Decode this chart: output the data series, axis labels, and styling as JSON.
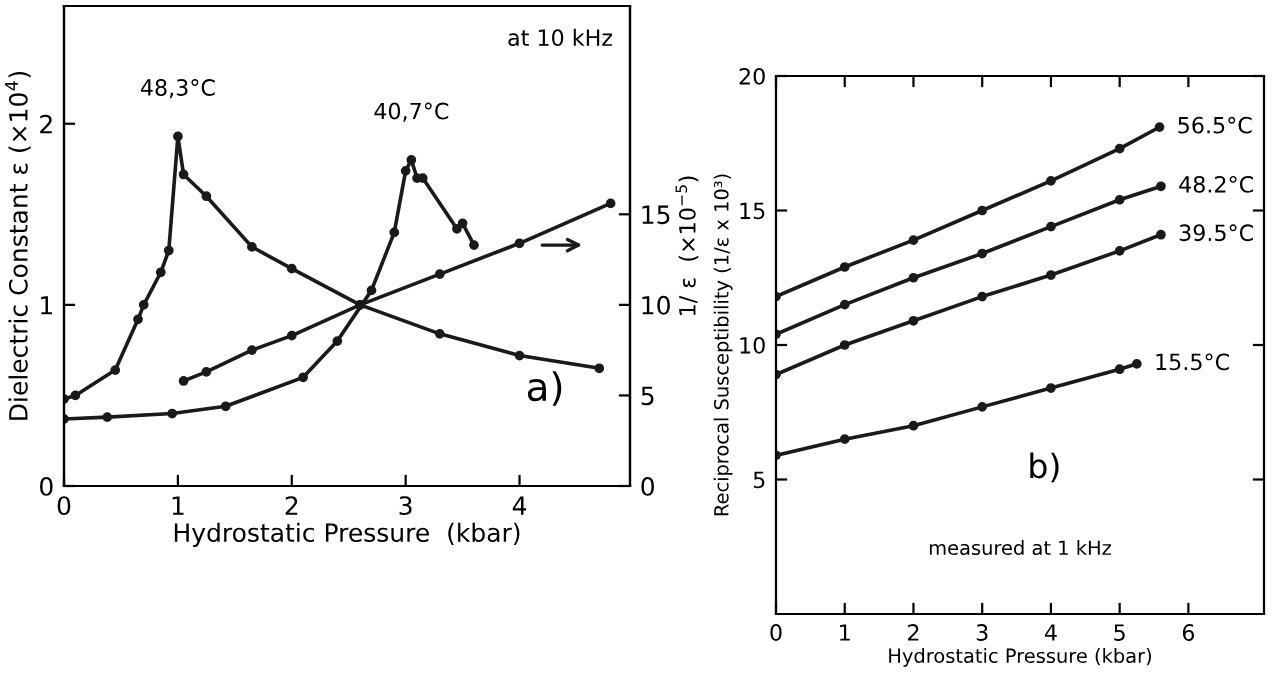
{
  "chart_data": [
    {
      "type": "line",
      "xlabel": "Hydrostatic Pressure  (kbar)",
      "ylabel": "Dielectric Constant ε (×10$^{4}$)",
      "y2label": "1/ ε  (×10$^{−5}$)",
      "xlim": [
        0,
        4.97
      ],
      "xticks": [
        0,
        1,
        2,
        3,
        4
      ],
      "ylim": [
        0,
        2.65
      ],
      "yticks": [
        0,
        1,
        2
      ],
      "y2lim": [
        0,
        26.5
      ],
      "y2ticks": [
        0,
        5,
        10,
        15
      ],
      "marker": "circle",
      "grid": false,
      "series": [
        {
          "name": "48,3°C",
          "color": "#1a1a1a",
          "x": [
            0,
            0.1,
            0.45,
            0.65,
            0.7,
            0.85,
            0.92,
            1.0,
            1.05,
            1.25,
            1.65,
            2.0,
            2.6,
            3.3,
            4.0,
            4.7
          ],
          "values": [
            0.48,
            0.5,
            0.64,
            0.92,
            1.0,
            1.18,
            1.3,
            1.93,
            1.72,
            1.6,
            1.32,
            1.2,
            1.0,
            0.84,
            0.72,
            0.65
          ]
        },
        {
          "name": "40,7°C",
          "color": "#1a1a1a",
          "x": [
            0,
            0.38,
            0.95,
            1.42,
            2.1,
            2.4,
            2.7,
            2.9,
            3.0,
            3.05,
            3.1,
            3.15,
            3.45,
            3.5,
            3.6
          ],
          "values": [
            0.37,
            0.38,
            0.4,
            0.44,
            0.6,
            0.8,
            1.08,
            1.4,
            1.74,
            1.8,
            1.7,
            1.7,
            1.42,
            1.45,
            1.33
          ]
        },
        {
          "color": "#1a1a1a",
          "axis": "y2",
          "x": [
            1.05,
            1.25,
            1.65,
            2.0,
            2.6,
            3.3,
            4.0,
            4.8
          ],
          "values": [
            5.8,
            6.3,
            7.5,
            8.3,
            10.0,
            11.7,
            13.4,
            15.6
          ]
        }
      ],
      "annotations": [
        "at 10 kHz",
        "a)"
      ]
    },
    {
      "type": "line",
      "xlabel": "Hydrostatic Pressure (kbar)",
      "ylabel": "Reciprocal Susceptibility (1/ε x 10³)",
      "xlim": [
        0,
        7.1
      ],
      "xticks": [
        0,
        1,
        2,
        3,
        4,
        5,
        6
      ],
      "ylim": [
        0,
        20
      ],
      "yticks": [
        5,
        10,
        15,
        20
      ],
      "marker": "circle",
      "grid": false,
      "series": [
        {
          "name": "56.5°C",
          "color": "#1a1a1a",
          "x": [
            0,
            1,
            2,
            3,
            4,
            5,
            5.58
          ],
          "values": [
            11.8,
            12.9,
            13.9,
            15.0,
            16.1,
            17.3,
            18.1
          ]
        },
        {
          "name": "48.2°C",
          "color": "#1a1a1a",
          "x": [
            0,
            1,
            2,
            3,
            4,
            5,
            5.6
          ],
          "values": [
            10.4,
            11.5,
            12.5,
            13.4,
            14.4,
            15.4,
            15.9
          ]
        },
        {
          "name": "39.5°C",
          "color": "#1a1a1a",
          "x": [
            0,
            1,
            2,
            3,
            4,
            5,
            5.6
          ],
          "values": [
            8.9,
            10.0,
            10.9,
            11.8,
            12.6,
            13.5,
            14.1
          ]
        },
        {
          "name": "15.5°C",
          "color": "#1a1a1a",
          "x": [
            0,
            1,
            2,
            3,
            4,
            5,
            5.25
          ],
          "values": [
            5.9,
            6.5,
            7.0,
            7.7,
            8.4,
            9.1,
            9.3
          ]
        }
      ],
      "annotations": [
        "measured at 1 kHz",
        "b)"
      ]
    }
  ]
}
